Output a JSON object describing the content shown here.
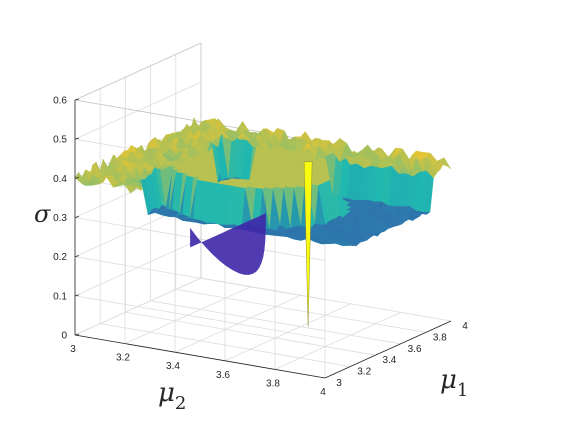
{
  "chart_data": {
    "type": "surface3d",
    "colormap": "parula",
    "grid": true,
    "axes": {
      "x": {
        "symbol": "μ",
        "subscript": "1",
        "range": [
          3,
          4
        ],
        "ticks": [
          "3",
          "3.2",
          "3.4",
          "3.6",
          "3.8",
          "4"
        ]
      },
      "y": {
        "symbol": "μ",
        "subscript": "2",
        "range": [
          3,
          4
        ],
        "ticks": [
          "3",
          "3.2",
          "3.4",
          "3.6",
          "3.8",
          "4"
        ]
      },
      "z": {
        "symbol": "σ",
        "range": [
          0,
          0.6
        ],
        "ticks": [
          "0",
          "0.1",
          "0.2",
          "0.3",
          "0.4",
          "0.5",
          "0.6"
        ]
      }
    },
    "surface": {
      "description_values": {
        "plateau_sigma": 0.4,
        "edge_sigma": 0.3,
        "bowl_min_sigma": 0.1,
        "spike_min_sigma": 0.0
      },
      "colors": {
        "low": "#3e26a8",
        "mid": "#1fb8b0",
        "high": "#f5c52a",
        "peak": "#f9fb0e"
      }
    }
  }
}
